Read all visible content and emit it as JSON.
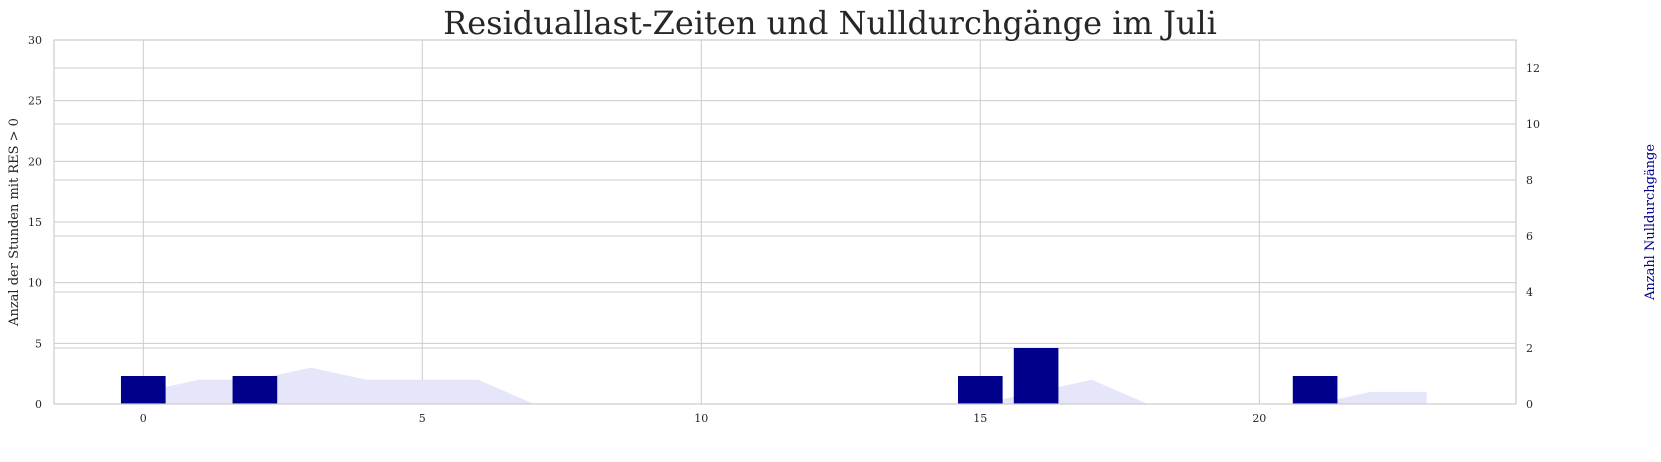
{
  "chart_data": {
    "type": "bar",
    "title": "Residuallast-Zeiten und Nulldurchgänge im Juli",
    "xlabel": "",
    "ylabel": "Anzal der Stunden mit RES > 0",
    "ylabel_right": "Anzahl Nulldurchgänge",
    "xlim": [
      -1.6,
      24.6
    ],
    "ylim": [
      0,
      30
    ],
    "ylim_right": [
      0,
      13
    ],
    "xticks": [
      0,
      5,
      10,
      15,
      20
    ],
    "yticks": [
      0,
      5,
      10,
      15,
      20,
      25,
      30
    ],
    "yticks_right": [
      0,
      2,
      4,
      6,
      8,
      10,
      12
    ],
    "grid": true,
    "series": [
      {
        "type": "area",
        "axis": "left",
        "color": "#E6E6FA",
        "x": [
          0,
          1,
          2,
          3,
          4,
          5,
          6,
          7,
          8,
          9,
          10,
          11,
          12,
          13,
          14,
          15,
          16,
          17,
          18,
          19,
          20,
          21,
          22,
          23
        ],
        "values": [
          1,
          2,
          2,
          3,
          2,
          2,
          2,
          0,
          0,
          0,
          0,
          0,
          0,
          0,
          0,
          0,
          1,
          2,
          0,
          0,
          0,
          0,
          1,
          1
        ]
      },
      {
        "type": "bar",
        "axis": "right",
        "color": "#00008B",
        "x": [
          0,
          2,
          15,
          16,
          21
        ],
        "values": [
          1,
          1,
          1,
          2,
          1
        ]
      }
    ]
  }
}
